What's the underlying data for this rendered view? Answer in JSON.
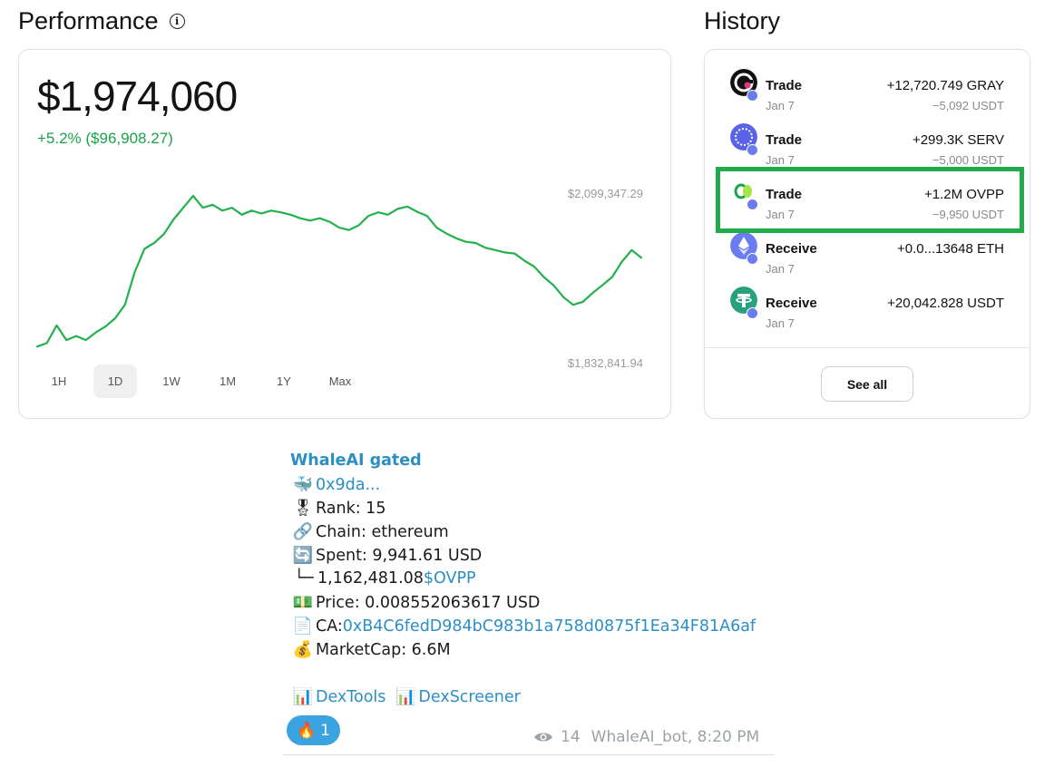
{
  "performance": {
    "title": "Performance",
    "value": "$1,974,060",
    "change": "+5.2% ($96,908.27)",
    "max_label": "$2,099,347.29",
    "min_label": "$1,832,841.94",
    "ranges": [
      "1H",
      "1D",
      "1W",
      "1M",
      "1Y",
      "Max"
    ],
    "active_range": "1D",
    "line_color": "#22b14c"
  },
  "chart_data": {
    "type": "line",
    "ylim": [
      1832841.94,
      2099347.29
    ],
    "series": [
      {
        "values": [
          1834000,
          1840000,
          1870000,
          1845000,
          1852000,
          1845000,
          1858000,
          1868000,
          1882000,
          1905000,
          1960000,
          2000000,
          2010000,
          2025000,
          2050000,
          2070000,
          2090000,
          2070000,
          2075000,
          2065000,
          2070000,
          2058000,
          2065000,
          2060000,
          2065000,
          2062000,
          2058000,
          2052000,
          2048000,
          2052000,
          2046000,
          2036000,
          2032000,
          2040000,
          2056000,
          2062000,
          2058000,
          2068000,
          2072000,
          2063000,
          2056000,
          2036000,
          2026000,
          2018000,
          2012000,
          2010000,
          2002000,
          1998000,
          1994000,
          1992000,
          1980000,
          1970000,
          1952000,
          1938000,
          1918000,
          1905000,
          1910000,
          1925000,
          1938000,
          1952000,
          1978000,
          1998000,
          1985000
        ]
      }
    ]
  },
  "history": {
    "title": "History",
    "items": [
      {
        "type": "Trade",
        "date": "Jan 7",
        "amount": "+12,720.749 GRAY",
        "sub": "−5,092 USDT",
        "icon": "gray-token-icon"
      },
      {
        "type": "Trade",
        "date": "Jan 7",
        "amount": "+299.3K SERV",
        "sub": "−5,000 USDT",
        "icon": "serv-token-icon"
      },
      {
        "type": "Trade",
        "date": "Jan 7",
        "amount": "+1.2M OVPP",
        "sub": "−9,950 USDT",
        "icon": "ovpp-token-icon"
      },
      {
        "type": "Receive",
        "date": "Jan 7",
        "amount": "+0.0...13648 ETH",
        "sub": "",
        "icon": "eth-token-icon"
      },
      {
        "type": "Receive",
        "date": "Jan 7",
        "amount": "+20,042.828 USDT",
        "sub": "",
        "icon": "usdt-token-icon"
      }
    ],
    "see_all": "See all",
    "highlight_color": "#22ab4a"
  },
  "message": {
    "header": "WhaleAI gated",
    "wallet": "0x9da...",
    "rank": "Rank: 15",
    "chain": "Chain: ethereum",
    "spent": "Spent: 9,941.61 USD",
    "received_prefix": "└─",
    "received_amount": "1,162,481.08 ",
    "received_token": "$OVPP",
    "price": "Price: 0.008552063617 USD",
    "ca_label": "CA: ",
    "ca_value": "0xB4C6fedD984bC983b1a758d0875f1Ea34F81A6af",
    "marketcap": "MarketCap: 6.6M",
    "dextools": "DexTools",
    "dexscreener": "DexScreener",
    "reaction_emoji": "🔥",
    "reaction_count": "1",
    "views": "14",
    "footer": "WhaleAI_bot, 8:20 PM"
  }
}
